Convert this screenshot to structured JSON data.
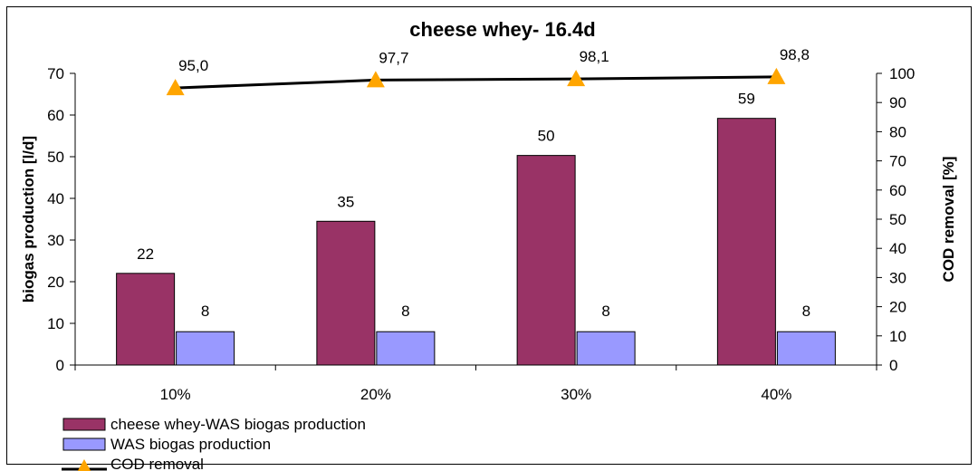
{
  "chart_data": {
    "type": "bar",
    "title": "cheese whey- 16.4d",
    "categories": [
      "10%",
      "20%",
      "30%",
      "40%"
    ],
    "ylabel_left": "biogas production [l/d]",
    "ylabel_right": "COD removal [%]",
    "ylim_left": [
      0,
      70
    ],
    "ylim_right": [
      0,
      100
    ],
    "yticks_left": [
      "0",
      "10",
      "20",
      "30",
      "40",
      "50",
      "60",
      "70"
    ],
    "yticks_right": [
      "0",
      "10",
      "20",
      "30",
      "40",
      "50",
      "60",
      "70",
      "80",
      "90",
      "100"
    ],
    "series": [
      {
        "name": "cheese whey-WAS biogas production",
        "type": "bar",
        "axis": "left",
        "color": "#993366",
        "values": [
          22,
          34.5,
          50.3,
          59.2
        ],
        "labels": [
          "22",
          "35",
          "50",
          "59"
        ]
      },
      {
        "name": "WAS biogas production",
        "type": "bar",
        "axis": "left",
        "color": "#9999ff",
        "values": [
          8,
          8,
          8,
          8
        ],
        "labels": [
          "8",
          "8",
          "8",
          "8"
        ]
      },
      {
        "name": "COD removal",
        "type": "line",
        "axis": "right",
        "color": "#000000",
        "marker_color": "#ffa500",
        "marker": "triangle",
        "values": [
          95.0,
          97.7,
          98.1,
          98.8
        ],
        "labels": [
          "95,0",
          "97,7",
          "98,1",
          "98,8"
        ]
      }
    ],
    "grid": false,
    "legend_position": "bottom-left"
  }
}
